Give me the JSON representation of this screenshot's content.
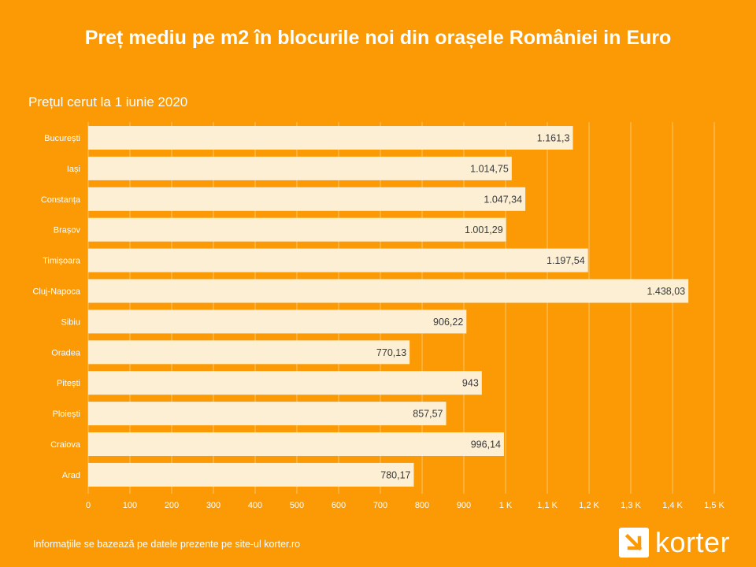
{
  "title": "Preț mediu pe m2 în blocurile noi din orașele României in Euro",
  "subtitle": "Prețul cerut la 1 iunie 2020",
  "footnote": "Informațiile se bazează pe datele prezente pe site-ul korter.ro",
  "brand": {
    "name": "korter",
    "icon": "korter-logo-icon"
  },
  "colors": {
    "background": "#fb9a04",
    "bar": "#fdefd4",
    "grid": "#fcc56a",
    "text": "#3a3a3a"
  },
  "chart_data": {
    "type": "bar",
    "orientation": "horizontal",
    "categories": [
      "București",
      "Iași",
      "Constanța",
      "Brașov",
      "Timișoara",
      "Cluj-Napoca",
      "Sibiu",
      "Oradea",
      "Pitești",
      "Ploiești",
      "Craiova",
      "Arad"
    ],
    "values": [
      1161.3,
      1014.75,
      1047.34,
      1001.29,
      1197.54,
      1438.03,
      906.22,
      770.13,
      943,
      857.57,
      996.14,
      780.17
    ],
    "value_labels": [
      "1.161,3",
      "1.014,75",
      "1.047,34",
      "1.001,29",
      "1.197,54",
      "1.438,03",
      "906,22",
      "770,13",
      "943",
      "857,57",
      "996,14",
      "780,17"
    ],
    "xlim": [
      0,
      1500
    ],
    "x_ticks": [
      0,
      100,
      200,
      300,
      400,
      500,
      600,
      700,
      800,
      900,
      1000,
      1100,
      1200,
      1300,
      1400,
      1500
    ],
    "x_tick_labels": [
      "0",
      "100",
      "200",
      "300",
      "400",
      "500",
      "600",
      "700",
      "800",
      "900",
      "1 K",
      "1,1 K",
      "1,2 K",
      "1,3 K",
      "1,4 K",
      "1,5 K"
    ],
    "grid": true,
    "legend": false
  }
}
